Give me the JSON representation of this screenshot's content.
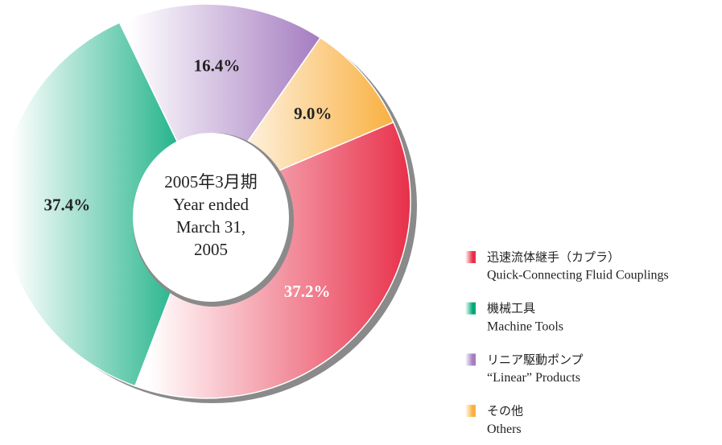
{
  "chart_data": {
    "type": "donut",
    "categories": [
      "迅速流体継手（カプラ）",
      "機械工具",
      "リニア駆動ポンプ",
      "その他"
    ],
    "category_subtitles": [
      "Quick-Connecting Fluid Couplings",
      "Machine Tools",
      "“Linear” Products",
      "Others"
    ],
    "values": [
      37.2,
      37.4,
      16.4,
      9.0
    ],
    "value_labels": [
      "37.2%",
      "37.4%",
      "16.4%",
      "9.0%"
    ],
    "colors": [
      "#e8304a",
      "#00a878",
      "#a57cc0",
      "#f9b040"
    ],
    "value_label_colors": [
      "#ffffff",
      "#222222",
      "#222222",
      "#222222"
    ],
    "center_label": [
      "2005年3月期",
      "Year ended",
      "March 31,",
      "2005"
    ]
  }
}
